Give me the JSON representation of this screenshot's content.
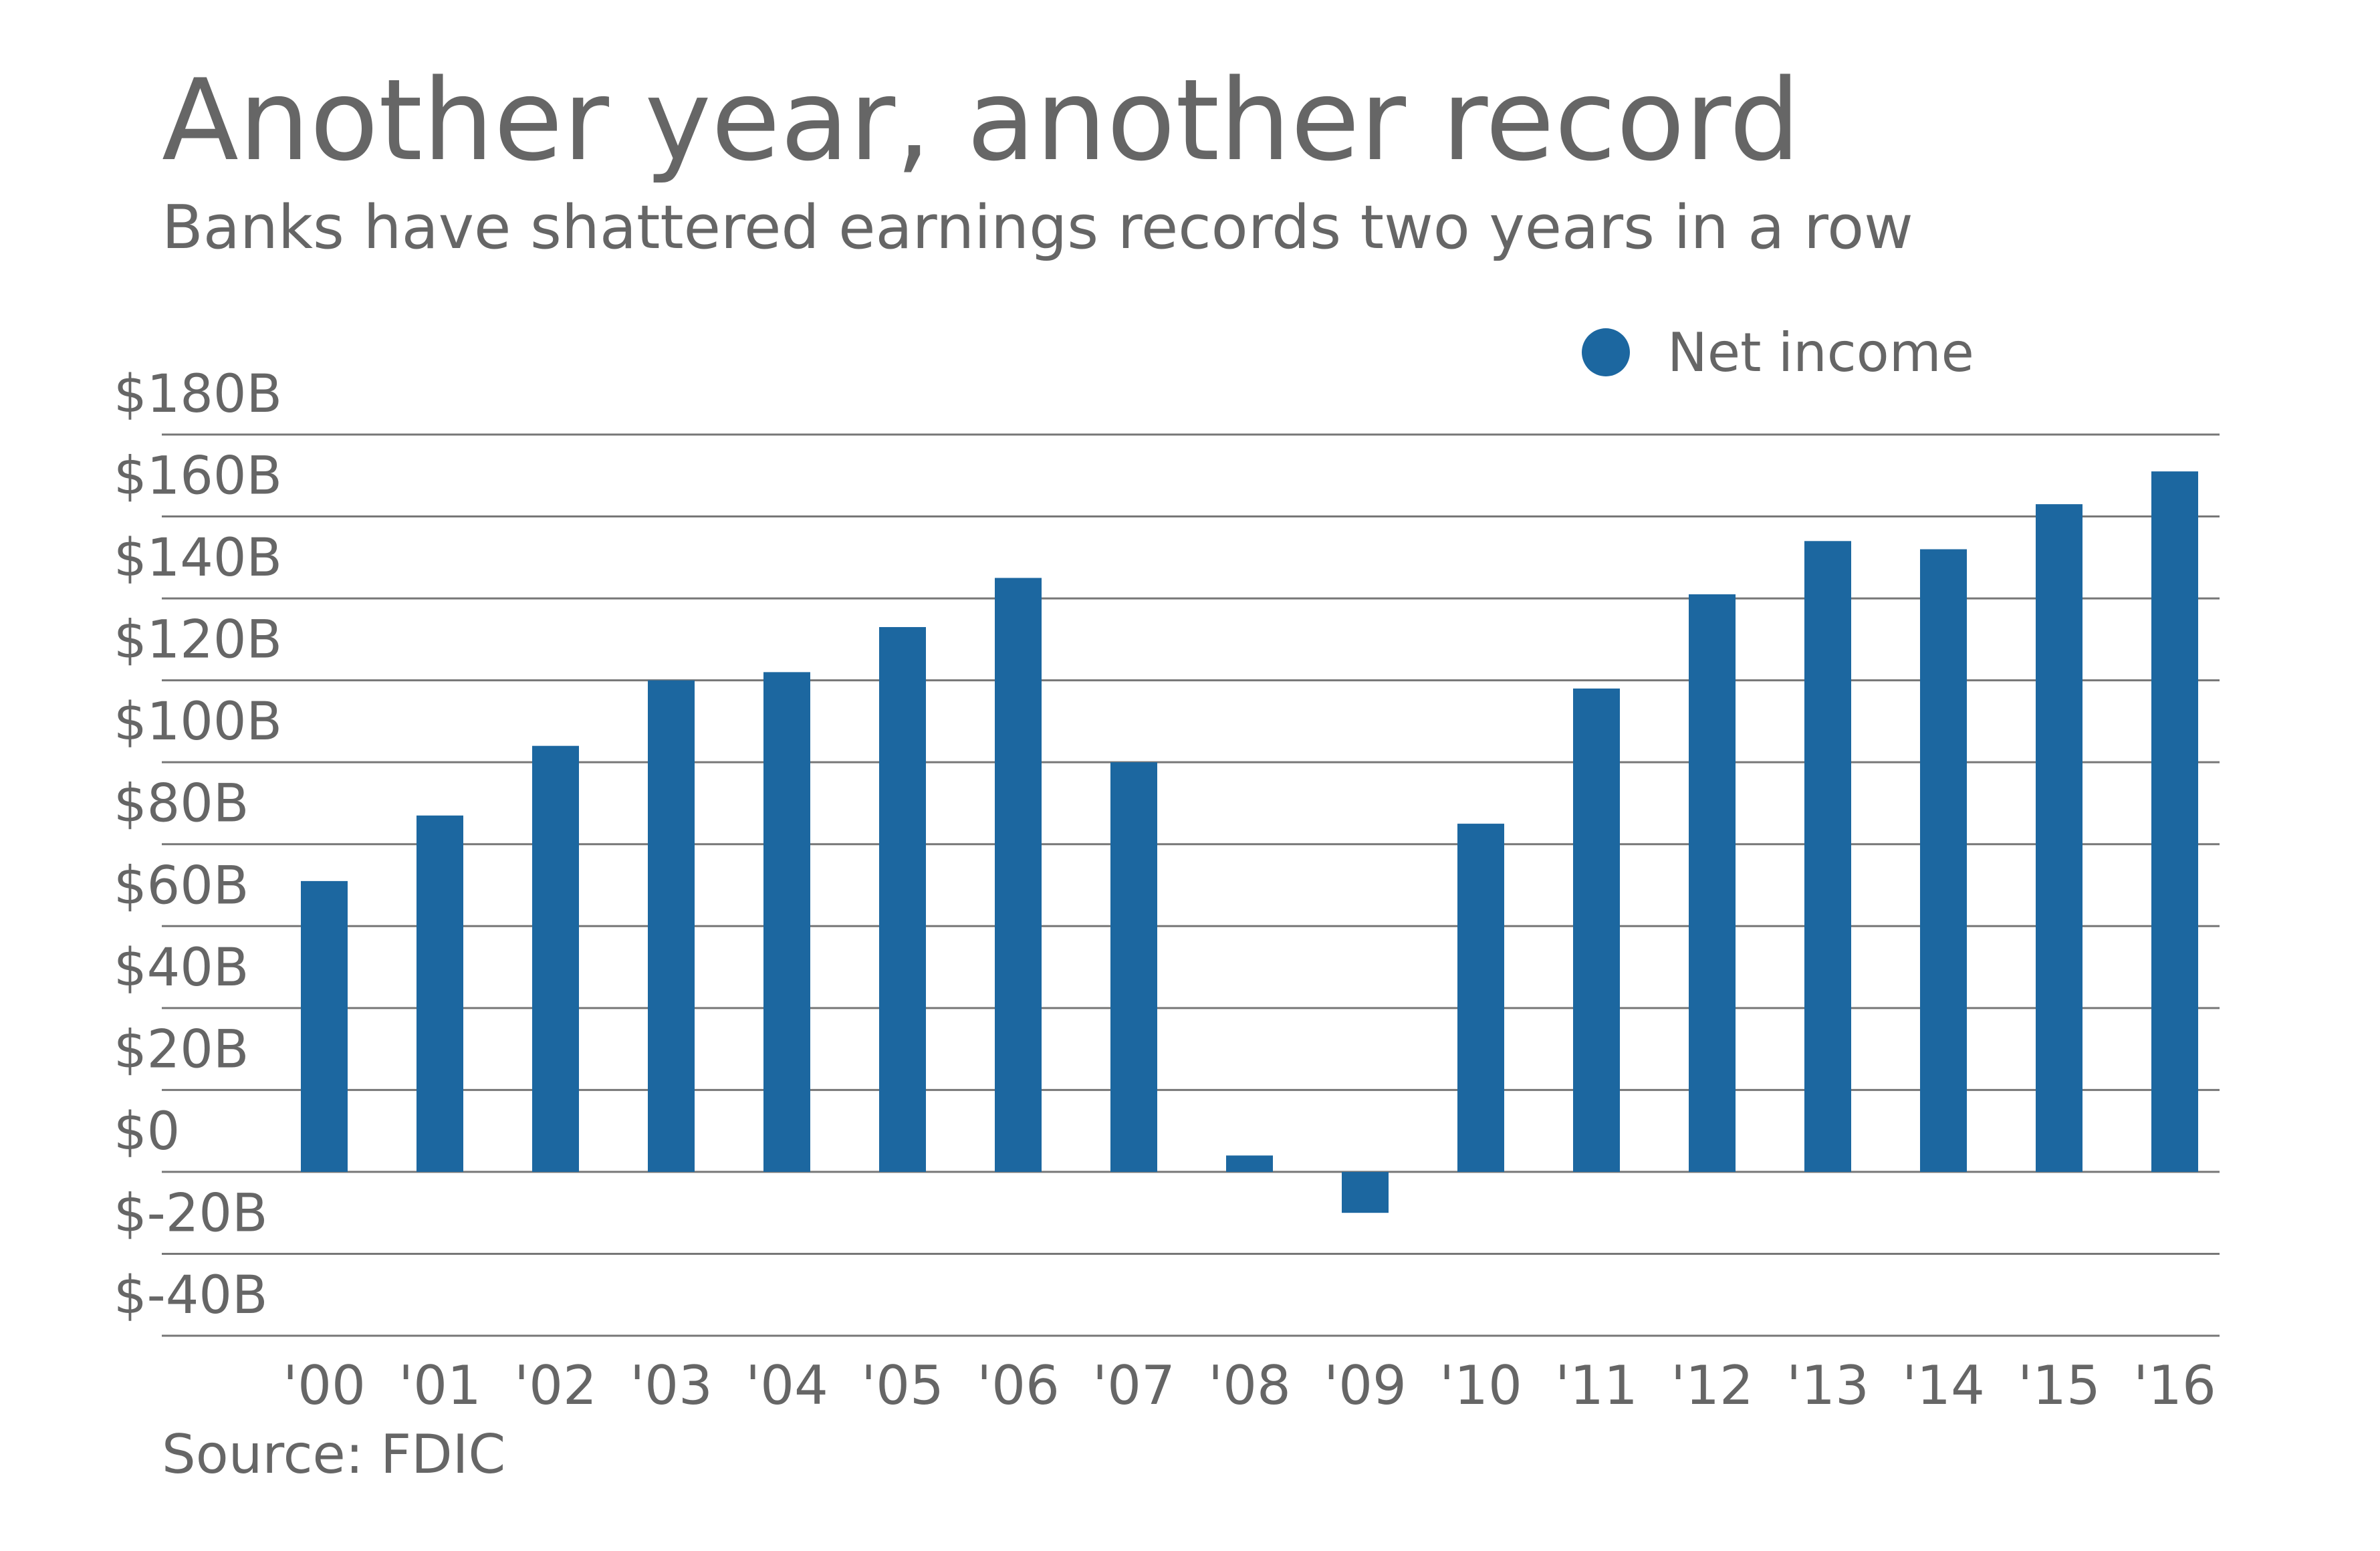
{
  "chart_data": {
    "type": "bar",
    "title": "Another year, another record",
    "subtitle": "Banks have shattered earnings records two years in a row",
    "source": "Source: FDIC",
    "categories": [
      "'00",
      "'01",
      "'02",
      "'03",
      "'04",
      "'05",
      "'06",
      "'07",
      "'08",
      "'09",
      "'10",
      "'11",
      "'12",
      "'13",
      "'14",
      "'15",
      "'16"
    ],
    "series": [
      {
        "name": "Net income",
        "values": [
          71,
          87,
          104,
          120,
          122,
          133,
          145,
          100,
          4,
          -10,
          85,
          118,
          141,
          154,
          152,
          163,
          171
        ]
      }
    ],
    "y_tick_labels": [
      "$-40B",
      "$-20B",
      "$0",
      "$20B",
      "$40B",
      "$60B",
      "$80B",
      "$100B",
      "$120B",
      "$140B",
      "$160B",
      "$180B"
    ],
    "y_ticks": [
      -40,
      -20,
      0,
      20,
      40,
      60,
      80,
      100,
      120,
      140,
      160,
      180
    ],
    "ylim": [
      -40,
      180
    ],
    "grid": true,
    "legend_position": "top-right",
    "colors": {
      "bar": "#1c67a0",
      "text": "#666666",
      "grid": "#777777"
    }
  }
}
